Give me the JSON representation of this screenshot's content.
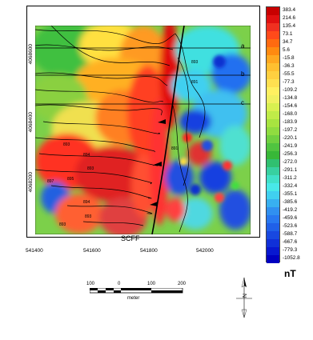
{
  "map": {
    "fault_label": "SCFF",
    "profile_labels": [
      "a",
      "b",
      "c"
    ],
    "y_ticks": [
      "4068600",
      "4068400",
      "4068200",
      "4068000"
    ],
    "x_ticks": [
      "541400",
      "541600",
      "541800",
      "542000"
    ],
    "contour_labels": [
      "893",
      "891",
      "893",
      "894",
      "893",
      "895",
      "894",
      "893",
      "893",
      "897",
      "891"
    ]
  },
  "colorbar": {
    "unit": "nT",
    "labels": [
      "383.4",
      "214.6",
      "135.4",
      "73.1",
      "34.7",
      "5.6",
      "-15.8",
      "-36.3",
      "-55.5",
      "-77.3",
      "-109.2",
      "-134.8",
      "-154.6",
      "-168.0",
      "-183.9",
      "-197.2",
      "-220.1",
      "-241.9",
      "-256.3",
      "-272.0",
      "-291.1",
      "-311.2",
      "-332.4",
      "-355.1",
      "-385.6",
      "-419.2",
      "-459.6",
      "-523.6",
      "-588.7",
      "-667.6",
      "-779.3",
      "-1052.8"
    ],
    "colors": [
      "#c80000",
      "#e01010",
      "#f03020",
      "#ff4a1a",
      "#ff6a10",
      "#ff8a10",
      "#ffa820",
      "#ffc030",
      "#ffd040",
      "#ffe050",
      "#fff060",
      "#f0f060",
      "#d8f050",
      "#c0ec48",
      "#a8e440",
      "#90dc40",
      "#70d040",
      "#50c440",
      "#38b838",
      "#30c070",
      "#38d0a0",
      "#40e0c8",
      "#48e8e8",
      "#40d0f0",
      "#38b0f0",
      "#3090f0",
      "#2878f0",
      "#2060e8",
      "#1848e0",
      "#1030d8",
      "#0818d0",
      "#0000c0"
    ]
  },
  "scalebar": {
    "ticks": [
      "100",
      "0",
      "100",
      "200"
    ],
    "unit": "meter"
  },
  "north_arrow": {
    "label": "N"
  }
}
